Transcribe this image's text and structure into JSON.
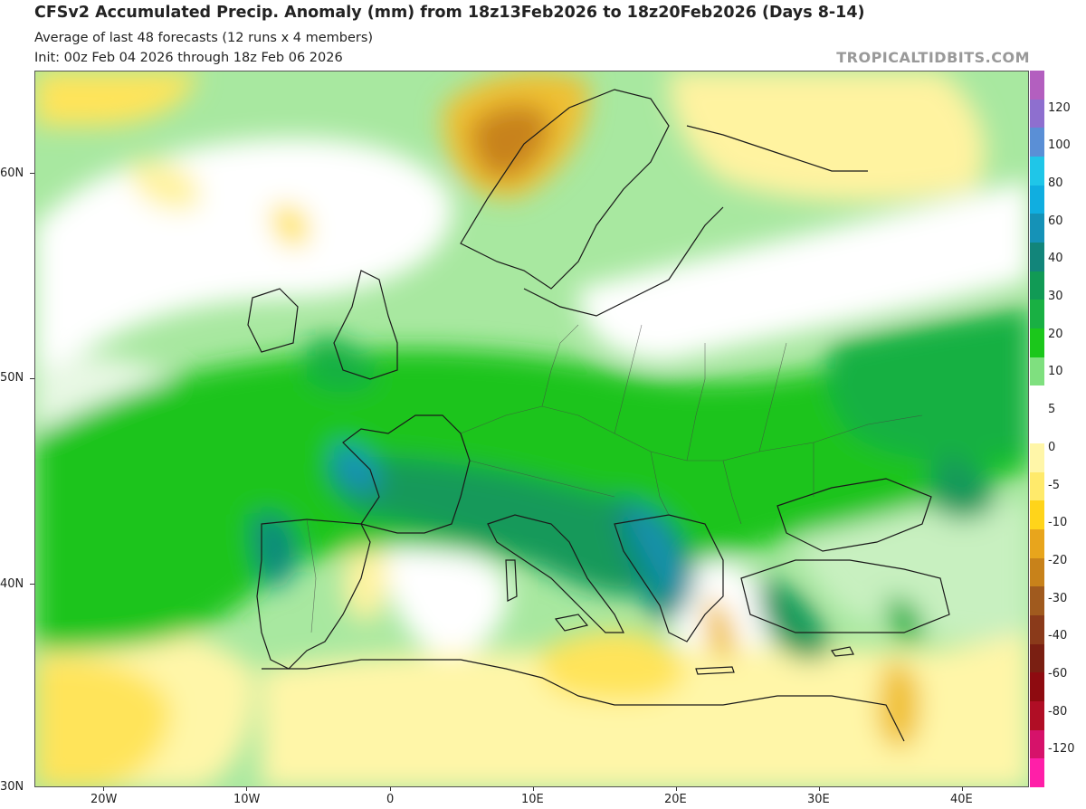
{
  "title": "CFSv2 Accumulated Precip. Anomaly (mm) from 18z13Feb2026 to 18z20Feb2026 (Days 8-14)",
  "subtitle": "Average of last 48 forecasts (12 runs x 4 members)",
  "init": "Init: 00z Feb 04 2026 through 18z Feb 06 2026",
  "credit": "TROPICALTIDBITS.COM",
  "lat_labels": [
    "60N",
    "50N",
    "40N",
    "30N"
  ],
  "lon_labels": [
    "20W",
    "10W",
    "0",
    "10E",
    "20E",
    "30E",
    "40E"
  ],
  "colorbar": {
    "levels": [
      "120",
      "100",
      "80",
      "60",
      "40",
      "30",
      "20",
      "10",
      "5",
      "0",
      "-5",
      "-10",
      "-20",
      "-30",
      "-40",
      "-60",
      "-80",
      "-120"
    ],
    "colors": [
      "#b35fbf",
      "#8e6fcf",
      "#5a8fd6",
      "#1fc6e8",
      "#10aee0",
      "#1592b7",
      "#12857a",
      "#119a55",
      "#19b043",
      "#1bc71b",
      "#7fe07f",
      "#ffffff",
      "#ffffff",
      "#fff6a8",
      "#ffea6b",
      "#ffd41a",
      "#e8a51c",
      "#c8821a",
      "#a05a1e",
      "#8a3a1a",
      "#7a1f12",
      "#8e0b10",
      "#b00e25",
      "#d6126a",
      "#ff1fa8"
    ]
  }
}
